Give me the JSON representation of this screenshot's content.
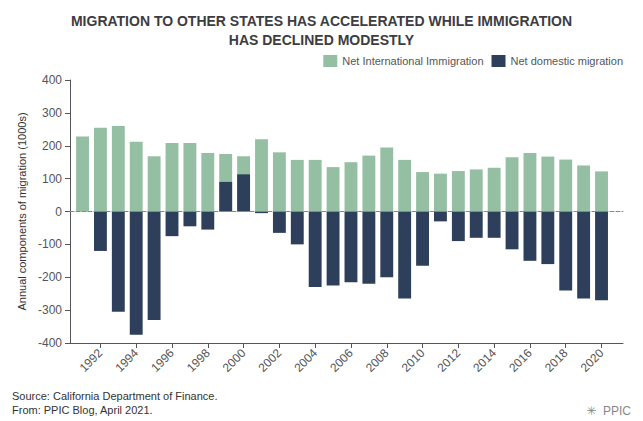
{
  "chart_data": {
    "type": "bar",
    "title": "MIGRATION TO OTHER STATES HAS ACCELERATED WHILE IMMIGRATION\nHAS DECLINED MODESTLY",
    "ylabel": "Annual components of migration (1000s)",
    "annotations": [
      "Source: California Department of Finance.\nFrom: PPIC Blog, April 2021.",
      "✳  PPIC"
    ],
    "x": [
      1991,
      1992,
      1993,
      1994,
      1995,
      1996,
      1997,
      1998,
      1999,
      2000,
      2001,
      2002,
      2003,
      2004,
      2005,
      2006,
      2007,
      2008,
      2009,
      2010,
      2011,
      2012,
      2013,
      2014,
      2015,
      2016,
      2017,
      2018,
      2019,
      2020
    ],
    "series": [
      {
        "name": "Net International Immigration",
        "color": "#94bfa2",
        "values": [
          228,
          255,
          260,
          212,
          168,
          208,
          208,
          178,
          175,
          168,
          220,
          180,
          157,
          157,
          135,
          150,
          170,
          195,
          157,
          120,
          115,
          123,
          128,
          133,
          165,
          178,
          167,
          158,
          140,
          122
        ]
      },
      {
        "name": "Net domestic migration",
        "color": "#2e3f5c",
        "values": [
          0,
          -120,
          -305,
          -375,
          -330,
          -75,
          -45,
          -55,
          90,
          113,
          -5,
          -65,
          -100,
          -230,
          -225,
          -215,
          -220,
          -200,
          -265,
          -165,
          -30,
          -90,
          -80,
          -80,
          -115,
          -150,
          -160,
          -240,
          -265,
          -270
        ]
      }
    ],
    "stacked": true,
    "xlim": [
      1990.3,
      2021.2
    ],
    "xticks": [
      1992,
      1994,
      1996,
      1998,
      2000,
      2002,
      2004,
      2006,
      2008,
      2010,
      2012,
      2014,
      2016,
      2018,
      2020
    ],
    "ylim": [
      -400,
      400
    ],
    "yticks": [
      -400,
      -300,
      -200,
      -100,
      0,
      100,
      200,
      300,
      400
    ],
    "grid": false,
    "legend": "upper right"
  }
}
